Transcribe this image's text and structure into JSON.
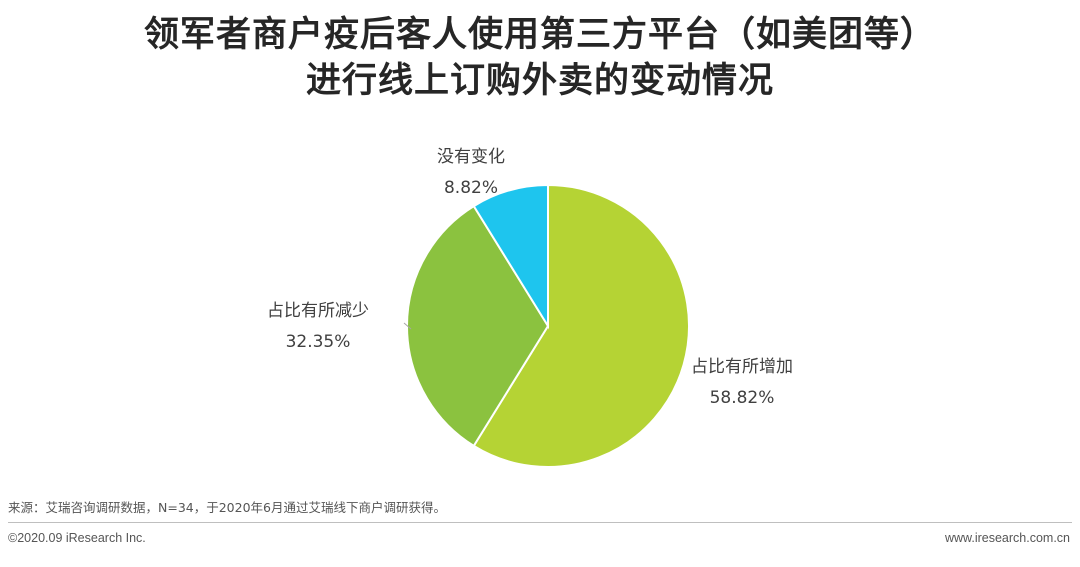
{
  "title_lines": [
    "领军者商户疫后客人使用第三方平台（如美团等）",
    "进行线上订购外卖的变动情况"
  ],
  "chart_data": {
    "type": "pie",
    "title": "领军者商户疫后客人使用第三方平台（如美团等）进行线上订购外卖的变动情况",
    "start_angle": "12 o'clock",
    "direction": "clockwise",
    "slices": [
      {
        "label": "占比有所增加",
        "value": 58.82,
        "value_label": "58.82%",
        "color": "#B5D334"
      },
      {
        "label": "占比有所减少",
        "value": 32.35,
        "value_label": "32.35%",
        "color": "#8BC23F"
      },
      {
        "label": "没有变化",
        "value": 8.82,
        "value_label": "8.82%",
        "color": "#1EC5EE"
      }
    ]
  },
  "footer": {
    "source": "来源：艾瑞咨询调研数据，N=34，于2020年6月通过艾瑞线下商户调研获得。",
    "copyright": "©2020.09 iResearch Inc.",
    "website": "www.iresearch.com.cn"
  }
}
